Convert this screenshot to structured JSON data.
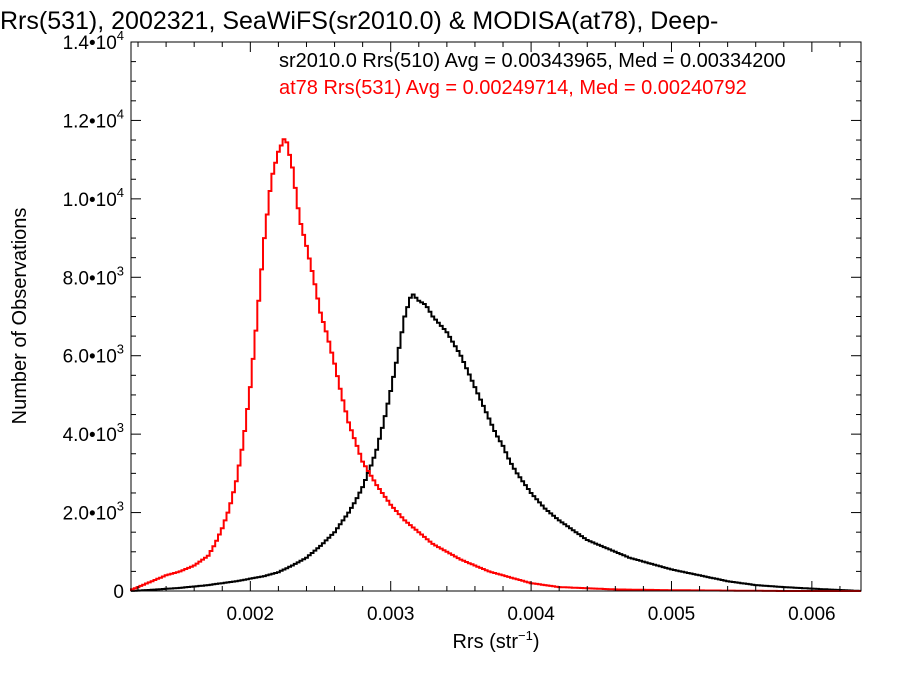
{
  "chart_data": {
    "type": "line",
    "title": "Rrs(531), 2002321, SeaWiFS(sr2010.0) & MODISA(at78), Deep-",
    "xlabel": "Rrs (str",
    "xlabel_sup": "−1",
    "xlabel_close": ")",
    "ylabel": "Number of Observations",
    "xlim": [
      0.00115,
      0.00635
    ],
    "ylim": [
      0,
      14000
    ],
    "x_ticks": [
      {
        "value": 0.002,
        "label": "0.002"
      },
      {
        "value": 0.003,
        "label": "0.003"
      },
      {
        "value": 0.004,
        "label": "0.004"
      },
      {
        "value": 0.005,
        "label": "0.005"
      },
      {
        "value": 0.006,
        "label": "0.006"
      }
    ],
    "y_ticks": [
      {
        "value": 0,
        "base": "0",
        "exp": ""
      },
      {
        "value": 2000,
        "base": "2.0•10",
        "exp": "3"
      },
      {
        "value": 4000,
        "base": "4.0•10",
        "exp": "3"
      },
      {
        "value": 6000,
        "base": "6.0•10",
        "exp": "3"
      },
      {
        "value": 8000,
        "base": "8.0•10",
        "exp": "3"
      },
      {
        "value": 10000,
        "base": "1.0•10",
        "exp": "4"
      },
      {
        "value": 12000,
        "base": "1.2•10",
        "exp": "4"
      },
      {
        "value": 14000,
        "base": "1.4•10",
        "exp": "4"
      }
    ],
    "legend": [
      {
        "text": "sr2010.0 Rrs(510) Avg = 0.00343965, Med = 0.00334200",
        "color": "#000000"
      },
      {
        "text": "at78 Rrs(531) Avg = 0.00249714, Med = 0.00240792",
        "color": "#ff0000"
      }
    ],
    "series": [
      {
        "color": "#000000",
        "x": [
          0.00115,
          0.0013,
          0.0015,
          0.0017,
          0.0019,
          0.0021,
          0.0022,
          0.0023,
          0.0024,
          0.0025,
          0.0026,
          0.0027,
          0.00275,
          0.0028,
          0.00285,
          0.0029,
          0.00295,
          0.003,
          0.00305,
          0.0031,
          0.00315,
          0.0032,
          0.00325,
          0.0033,
          0.00335,
          0.0034,
          0.00345,
          0.0035,
          0.00355,
          0.0036,
          0.00365,
          0.0037,
          0.00375,
          0.0038,
          0.00385,
          0.0039,
          0.004,
          0.0041,
          0.0042,
          0.0043,
          0.0044,
          0.0045,
          0.0046,
          0.0047,
          0.0048,
          0.005,
          0.0052,
          0.0054,
          0.0056,
          0.0058,
          0.006,
          0.00635
        ],
        "y": [
          0,
          30,
          80,
          150,
          250,
          380,
          480,
          650,
          850,
          1150,
          1500,
          2000,
          2300,
          2650,
          3100,
          3600,
          4300,
          5100,
          6000,
          7000,
          7600,
          7400,
          7300,
          7000,
          6800,
          6600,
          6300,
          6000,
          5600,
          5200,
          4800,
          4400,
          4000,
          3700,
          3300,
          3000,
          2500,
          2100,
          1800,
          1550,
          1300,
          1150,
          1000,
          850,
          750,
          550,
          400,
          250,
          150,
          100,
          60,
          0
        ]
      },
      {
        "color": "#ff0000",
        "x": [
          0.00115,
          0.0012,
          0.0013,
          0.0014,
          0.0015,
          0.0016,
          0.0017,
          0.00175,
          0.0018,
          0.00185,
          0.0019,
          0.00195,
          0.002,
          0.00205,
          0.0021,
          0.00215,
          0.0022,
          0.00225,
          0.0023,
          0.00235,
          0.0024,
          0.00245,
          0.0025,
          0.00255,
          0.0026,
          0.00265,
          0.0027,
          0.00275,
          0.0028,
          0.0029,
          0.003,
          0.0031,
          0.0032,
          0.0033,
          0.0034,
          0.0035,
          0.0036,
          0.0037,
          0.0038,
          0.0039,
          0.004,
          0.0041,
          0.0042,
          0.0044,
          0.0046,
          0.005,
          0.0054,
          0.0058,
          0.00635
        ],
        "y": [
          30,
          100,
          250,
          400,
          500,
          650,
          900,
          1200,
          1600,
          2100,
          2800,
          3800,
          5200,
          7000,
          9000,
          10500,
          11200,
          11600,
          10800,
          9500,
          8800,
          8000,
          7100,
          6500,
          5800,
          5000,
          4300,
          3800,
          3300,
          2700,
          2200,
          1800,
          1500,
          1200,
          1000,
          800,
          650,
          500,
          400,
          300,
          200,
          150,
          100,
          70,
          40,
          20,
          10,
          0,
          0
        ]
      }
    ]
  }
}
